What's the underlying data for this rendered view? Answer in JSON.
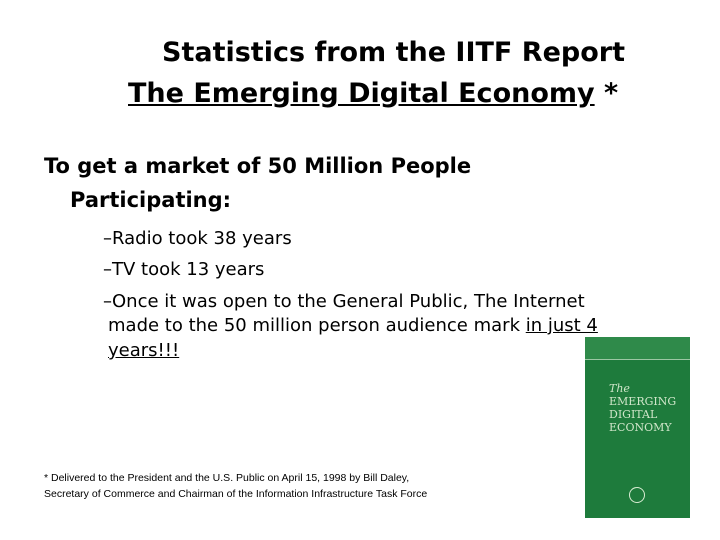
{
  "title": {
    "line1": "Statistics from the IITF Report",
    "line2": "The Emerging Digital Economy",
    "marker": "*"
  },
  "heading": {
    "line1": "To get a market of 50 Million People",
    "line2": "Participating:"
  },
  "bullets": [
    {
      "lines": [
        "–Radio took 38 years"
      ]
    },
    {
      "lines": [
        "–TV took 13 years"
      ]
    },
    {
      "lines": [
        "–Once it was open to the General Public, The Internet",
        "made to the 50 million person audience mark"
      ],
      "emphasis": [
        "in just 4",
        "years!!!"
      ]
    }
  ],
  "footnote": {
    "line1": "* Delivered to the President  and the U.S. Public on April 15, 1998 by Bill Daley,",
    "line2": "Secretary of  Commerce and Chairman of the Information Infrastructure Task Force"
  },
  "book_cover": {
    "title_lines": [
      "The",
      "EMERGING",
      "DIGITAL",
      "ECONOMY"
    ]
  }
}
